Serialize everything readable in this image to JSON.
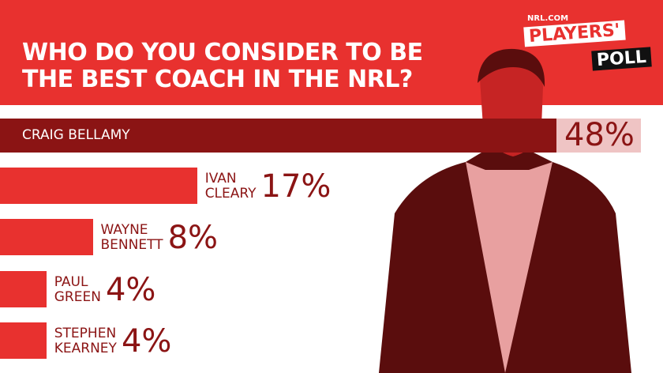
{
  "logo": {
    "site": "NRL.COM",
    "line1": "PLAYERS'",
    "line2": "POLL"
  },
  "chart_data": {
    "type": "bar",
    "orientation": "horizontal",
    "title": "WHO DO YOU CONSIDER TO BE THE BEST COACH IN THE NRL?",
    "categories": [
      "CRAIG BELLAMY",
      "IVAN CLEARY",
      "WAYNE BENNETT",
      "PAUL GREEN",
      "STEPHEN KEARNEY"
    ],
    "values": [
      48,
      17,
      8,
      4,
      4
    ],
    "value_labels": [
      "48%",
      "17%",
      "8%",
      "4%",
      "4%"
    ],
    "color": "#e8312f",
    "highlight_color": "#8b1414"
  }
}
